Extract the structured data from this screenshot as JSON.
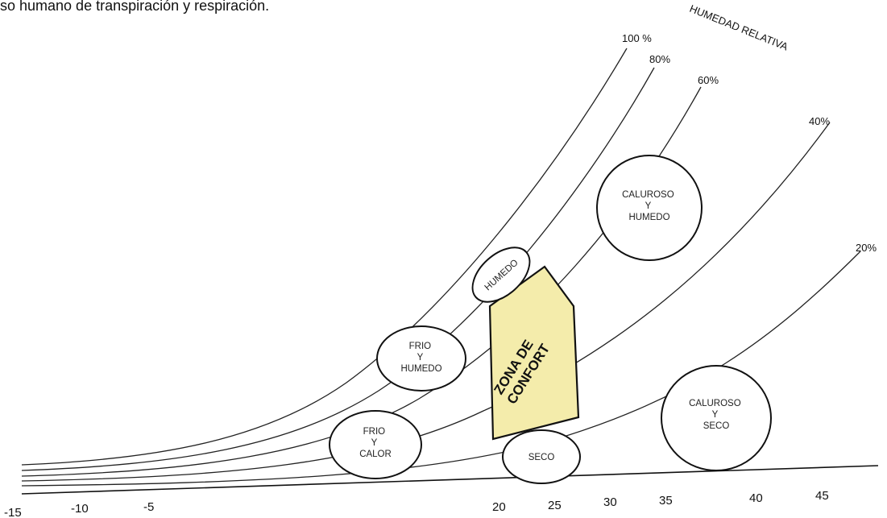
{
  "caption": "so humano de transpiración y respiración.",
  "axis_title": "HUMEDAD RELATIVA",
  "colors": {
    "comfort_fill": "#f4ecab",
    "line": "#222222"
  },
  "curves": [
    {
      "label": "100 %"
    },
    {
      "label": "80%"
    },
    {
      "label": "60%"
    },
    {
      "label": "40%"
    },
    {
      "label": "20%"
    }
  ],
  "zones": {
    "frio_calor": [
      "FRIO",
      "Y",
      "CALOR"
    ],
    "frio_humedo": [
      "FRIO",
      "Y",
      "HUMEDO"
    ],
    "humedo": "HUMEDO",
    "seco": "SECO",
    "caluroso_humedo": [
      "CALUROSO",
      "Y",
      "HUMEDO"
    ],
    "caluroso_seco": [
      "CALUROSO",
      "Y",
      "SECO"
    ],
    "comfort": [
      "ZONA DE",
      "CONFORT"
    ]
  },
  "ticks": [
    "-15",
    "-10",
    "-5",
    "20",
    "25",
    "30",
    "35",
    "40",
    "45"
  ]
}
